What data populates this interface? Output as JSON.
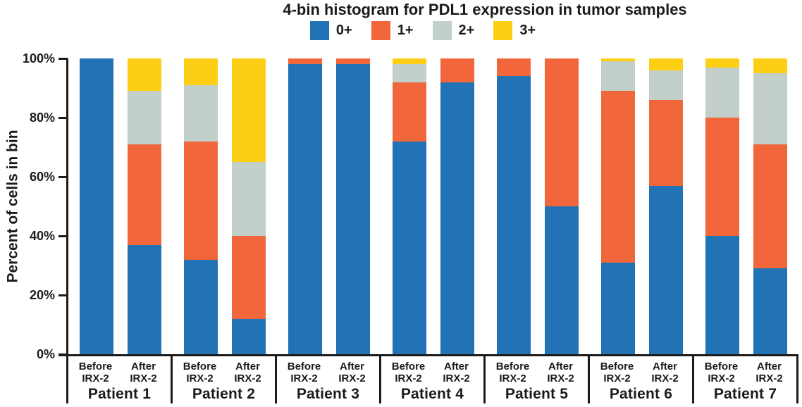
{
  "title": "4-bin histogram for PDL1 expression in tumor samples",
  "chart_data": {
    "type": "bar",
    "stacked": true,
    "title": "4-bin histogram for PDL1 expression in tumor samples",
    "ylabel": "Percent of cells in bin",
    "unit": "%",
    "ylim": [
      0,
      100
    ],
    "grid": false,
    "legend_position": "top",
    "series": [
      {
        "name": "0+",
        "color": "#2273B5"
      },
      {
        "name": "1+",
        "color": "#F1673B"
      },
      {
        "name": "2+",
        "color": "#C3CFC9"
      },
      {
        "name": "3+",
        "color": "#FCCF15"
      }
    ],
    "yticks": [
      {
        "label": "100%",
        "value": 100
      },
      {
        "label": "80%",
        "value": 80
      },
      {
        "label": "60%",
        "value": 60
      },
      {
        "label": "40%",
        "value": 40
      },
      {
        "label": "20%",
        "value": 20
      },
      {
        "label": "0%",
        "value": 0
      }
    ],
    "patients": [
      {
        "label": "Patient 1",
        "bars": [
          {
            "line1": "Before",
            "line2": "IRX-2",
            "values": [
              100,
              0,
              0,
              0
            ]
          },
          {
            "line1": "After",
            "line2": "IRX-2",
            "values": [
              37,
              34,
              18,
              11
            ]
          }
        ]
      },
      {
        "label": "Patient 2",
        "bars": [
          {
            "line1": "Before",
            "line2": "IRX-2",
            "values": [
              32,
              40,
              19,
              9
            ]
          },
          {
            "line1": "After",
            "line2": "IRX-2",
            "values": [
              12,
              28,
              25,
              35
            ]
          }
        ]
      },
      {
        "label": "Patient 3",
        "bars": [
          {
            "line1": "Before",
            "line2": "IRX-2",
            "values": [
              98,
              2,
              0,
              0
            ]
          },
          {
            "line1": "After",
            "line2": "IRX-2",
            "values": [
              98,
              2,
              0,
              0
            ]
          }
        ]
      },
      {
        "label": "Patient 4",
        "bars": [
          {
            "line1": "Before",
            "line2": "IRX-2",
            "values": [
              72,
              20,
              6,
              2
            ]
          },
          {
            "line1": "After",
            "line2": "IRX-2",
            "values": [
              92,
              8,
              0,
              0
            ]
          }
        ]
      },
      {
        "label": "Patient 5",
        "bars": [
          {
            "line1": "Before",
            "line2": "IRX-2",
            "values": [
              94,
              6,
              0,
              0
            ]
          },
          {
            "line1": "After",
            "line2": "IRX-2",
            "values": [
              50,
              50,
              0,
              0
            ]
          }
        ]
      },
      {
        "label": "Patient 6",
        "bars": [
          {
            "line1": "Before",
            "line2": "IRX-2",
            "values": [
              31,
              58,
              10,
              1
            ]
          },
          {
            "line1": "After",
            "line2": "IRX-2",
            "values": [
              57,
              29,
              10,
              4
            ]
          }
        ]
      },
      {
        "label": "Patient 7",
        "bars": [
          {
            "line1": "Before",
            "line2": "IRX-2",
            "values": [
              40,
              40,
              17,
              3
            ]
          },
          {
            "line1": "After",
            "line2": "IRX-2",
            "values": [
              29,
              42,
              24,
              5
            ]
          }
        ]
      }
    ]
  }
}
